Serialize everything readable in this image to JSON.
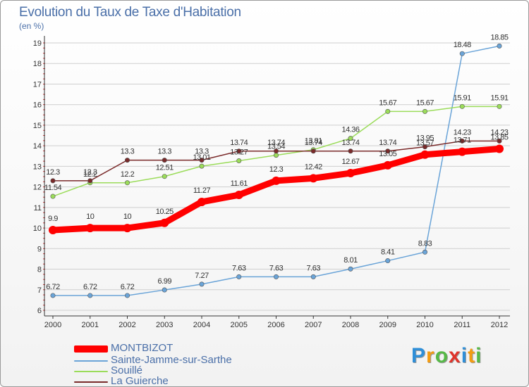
{
  "colors": {
    "title": "#4a6fa8",
    "axis": "#333333",
    "grid": "#cfcfcf",
    "montbizot": "#ff0000",
    "sainte_jamme": "#6aa4d8",
    "souille": "#9bdc5a",
    "la_guierche": "#7a2a2a"
  },
  "chart_data": {
    "type": "line",
    "title": "Evolution du Taux de Taxe d'Habitation",
    "subtitle": "(en %)",
    "xlabel": "",
    "ylabel": "",
    "ylim": [
      6,
      19
    ],
    "y_ticks": [
      "6",
      "7",
      "8",
      "9",
      "10",
      "11",
      "12",
      "13",
      "14",
      "15",
      "16",
      "17",
      "18",
      "19"
    ],
    "x": [
      "2000",
      "2001",
      "2002",
      "2003",
      "2004",
      "2005",
      "2006",
      "2007",
      "2008",
      "2009",
      "2010",
      "2011",
      "2012"
    ],
    "grid": "horizontal",
    "legend_position": "bottom-left",
    "series": [
      {
        "name": "MONTBIZOT",
        "color": "#ff0000",
        "emphasis": true,
        "values": [
          9.9,
          10,
          10,
          10.25,
          11.27,
          11.61,
          12.3,
          12.42,
          12.67,
          13.05,
          13.57,
          13.71,
          13.85
        ],
        "labels": [
          "9.9",
          "10",
          "10",
          "10.25",
          "11.27",
          "11.61",
          "12.3",
          "12.42",
          "12.67",
          "13.05",
          "13.57",
          "13.71",
          "13.85"
        ]
      },
      {
        "name": "Sainte-Jamme-sur-Sarthe",
        "color": "#6aa4d8",
        "values": [
          6.72,
          6.72,
          6.72,
          6.99,
          7.27,
          7.63,
          7.63,
          7.63,
          8.01,
          8.41,
          8.83,
          18.48,
          18.85
        ],
        "labels": [
          "6.72",
          "6.72",
          "6.72",
          "6.99",
          "7.27",
          "7.63",
          "7.63",
          "7.63",
          "8.01",
          "8.41",
          "8.83",
          "18.48",
          "18.85"
        ]
      },
      {
        "name": "Souillé",
        "color": "#9bdc5a",
        "values": [
          11.54,
          12.2,
          12.2,
          12.51,
          13.01,
          13.27,
          13.54,
          13.81,
          14.36,
          15.67,
          15.67,
          15.91,
          15.91
        ],
        "labels": [
          "11.54",
          "12.2",
          "12.2",
          "12.51",
          "13.01",
          "13.27",
          "13.54",
          "13.81",
          "14.36",
          "15.67",
          "15.67",
          "15.91",
          "15.91"
        ]
      },
      {
        "name": "La Guierche",
        "color": "#7a2a2a",
        "values": [
          12.3,
          12.3,
          13.3,
          13.3,
          13.3,
          13.74,
          13.74,
          13.74,
          13.74,
          13.74,
          13.95,
          14.23,
          14.23
        ],
        "labels": [
          "12.3",
          "12.3",
          "13.3",
          "13.3",
          "13.3",
          "13.74",
          "13.74",
          "13.74",
          "13.74",
          "13.74",
          "13.95",
          "14.23",
          "14.23"
        ]
      }
    ]
  },
  "legend": [
    {
      "label": "MONTBIZOT",
      "color": "#ff0000"
    },
    {
      "label": "Sainte-Jamme-sur-Sarthe",
      "color": "#6aa4d8"
    },
    {
      "label": "Souillé",
      "color": "#9bdc5a"
    },
    {
      "label": "La Guierche",
      "color": "#7a2a2a"
    }
  ],
  "brand": {
    "letters": [
      "P",
      "r",
      "o",
      "x",
      "i",
      "t",
      "i"
    ],
    "colors": [
      "#2f8fd8",
      "#f39c12",
      "#56b947",
      "#e0342b",
      "#2f8fd8",
      "#f39c12",
      "#56b947"
    ]
  }
}
